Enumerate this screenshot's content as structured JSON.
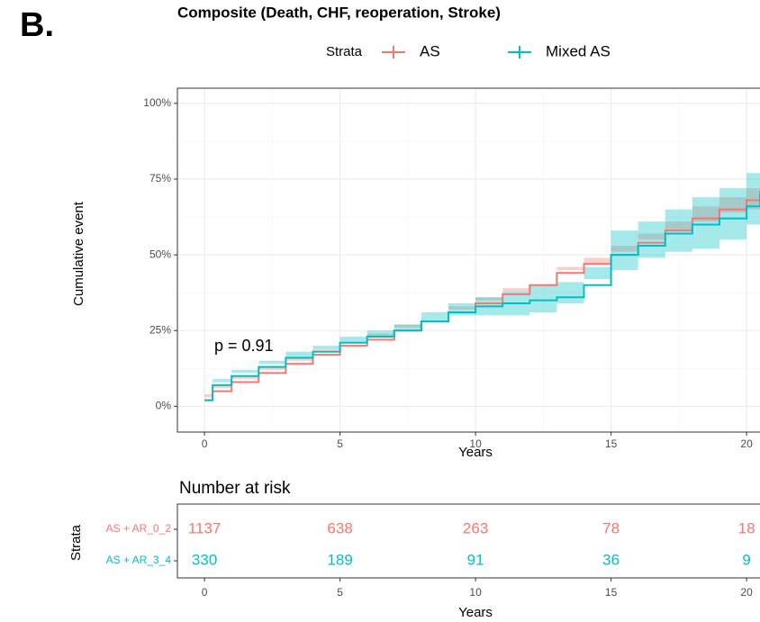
{
  "panel_label": "B.",
  "chart_data": {
    "type": "step",
    "title": "Composite (Death, CHF, reoperation, Stroke)",
    "legend_title": "Strata",
    "legend": "top",
    "xlabel": "Years",
    "ylabel": "Cumulative event",
    "annotation": "p = 0.91",
    "xlim": [
      -1,
      21
    ],
    "ylim": [
      -8.5,
      105
    ],
    "xticks": [
      0,
      5,
      10,
      15,
      20
    ],
    "yticks": [
      {
        "value": 0,
        "label": "0%"
      },
      {
        "value": 25,
        "label": "25%"
      },
      {
        "value": 50,
        "label": "50%"
      },
      {
        "value": 75,
        "label": "75%"
      },
      {
        "value": 100,
        "label": "100%"
      }
    ],
    "grid": true,
    "x": [
      0,
      0.3,
      1,
      2,
      3,
      4,
      5,
      6,
      7,
      8,
      9,
      10,
      11,
      12,
      13,
      14,
      15,
      16,
      17,
      18,
      19,
      20,
      20.5
    ],
    "series": [
      {
        "name": "AS",
        "color": "#F8766D",
        "values": [
          2,
          5,
          8,
          11,
          14,
          17,
          20,
          22,
          25,
          28,
          31,
          34,
          37,
          40,
          44,
          47,
          50,
          54,
          58,
          62,
          65,
          68,
          70
        ],
        "lower": [
          1,
          4,
          7,
          10,
          13,
          16,
          19,
          21,
          24,
          27,
          29,
          32,
          35,
          38,
          42,
          45,
          47,
          51,
          55,
          58,
          61,
          64,
          65
        ],
        "upper": [
          3,
          6,
          9,
          12,
          15,
          18,
          21,
          23,
          26,
          29,
          33,
          36,
          39,
          42,
          46,
          49,
          53,
          57,
          61,
          66,
          69,
          72,
          75
        ]
      },
      {
        "name": "Mixed AS",
        "color": "#00BFC4",
        "values": [
          2,
          7,
          10,
          13,
          16,
          18,
          21,
          23,
          25,
          28,
          31,
          33,
          34,
          35,
          36,
          40,
          50,
          53,
          57,
          60,
          62,
          66,
          71
        ],
        "lower": [
          0,
          4,
          8,
          11,
          14,
          16,
          19,
          21,
          23,
          25,
          28,
          30,
          30,
          30,
          31,
          34,
          42,
          45,
          49,
          51,
          52,
          55,
          60
        ],
        "upper": [
          4,
          9,
          12,
          15,
          18,
          20,
          23,
          25,
          27,
          31,
          34,
          36,
          38,
          40,
          41,
          46,
          58,
          61,
          65,
          69,
          72,
          77,
          82
        ]
      }
    ]
  },
  "risk_table": {
    "title": "Number at risk",
    "ylabel": "Strata",
    "xlabel": "Years",
    "times": [
      0,
      5,
      10,
      15,
      20
    ],
    "rows": [
      {
        "label": "AS + AR_0_2",
        "color": "#F8766D",
        "counts": [
          1137,
          638,
          263,
          78,
          18
        ]
      },
      {
        "label": "AS + AR_3_4",
        "color": "#00BFC4",
        "counts": [
          330,
          189,
          91,
          36,
          9
        ]
      }
    ]
  }
}
